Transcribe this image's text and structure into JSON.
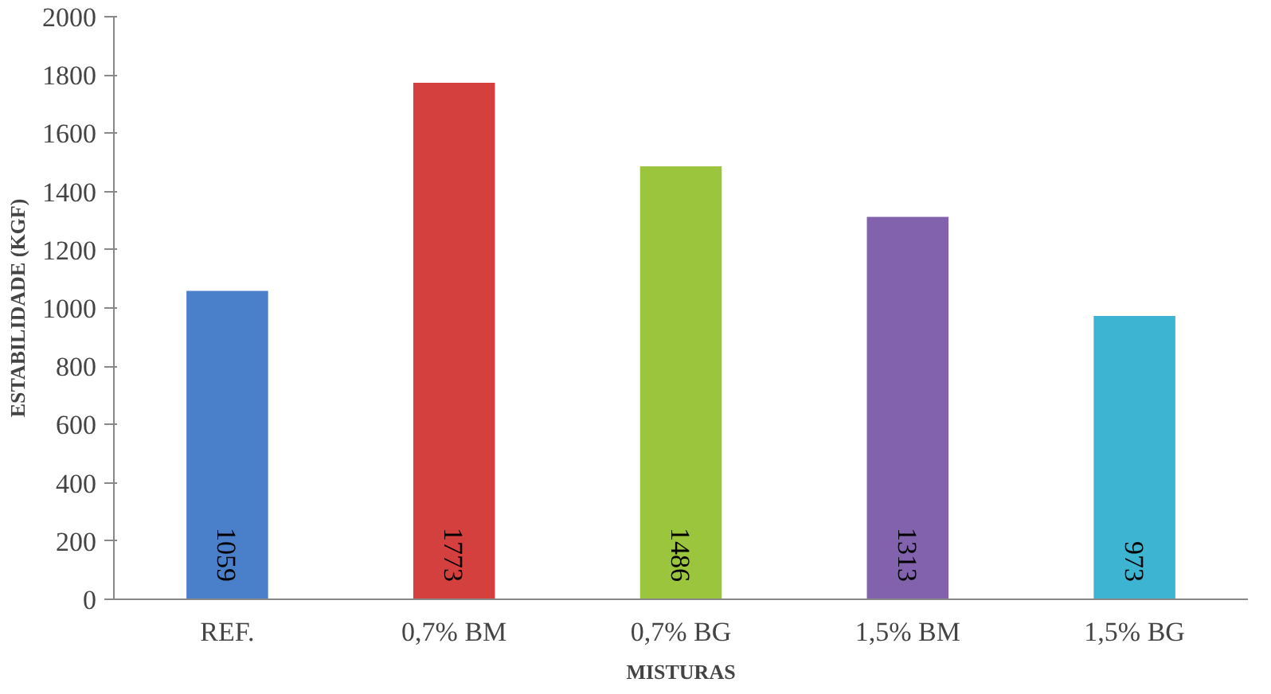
{
  "chart_data": {
    "type": "bar",
    "xlabel": "MISTURAS",
    "ylabel": "ESTABILIDADE (KGF)",
    "categories": [
      "REF.",
      "0,7% BM",
      "0,7% BG",
      "1,5% BM",
      "1,5% BG"
    ],
    "values": [
      1059,
      1773,
      1486,
      1313,
      973
    ],
    "colors": [
      "#4a7fc9",
      "#d4403d",
      "#9bc53d",
      "#8262ad",
      "#3db4d1"
    ],
    "ylim": [
      0,
      2000
    ],
    "yticks": [
      0,
      200,
      400,
      600,
      800,
      1000,
      1200,
      1400,
      1600,
      1800,
      2000
    ],
    "data_labels": true,
    "grid": false
  }
}
